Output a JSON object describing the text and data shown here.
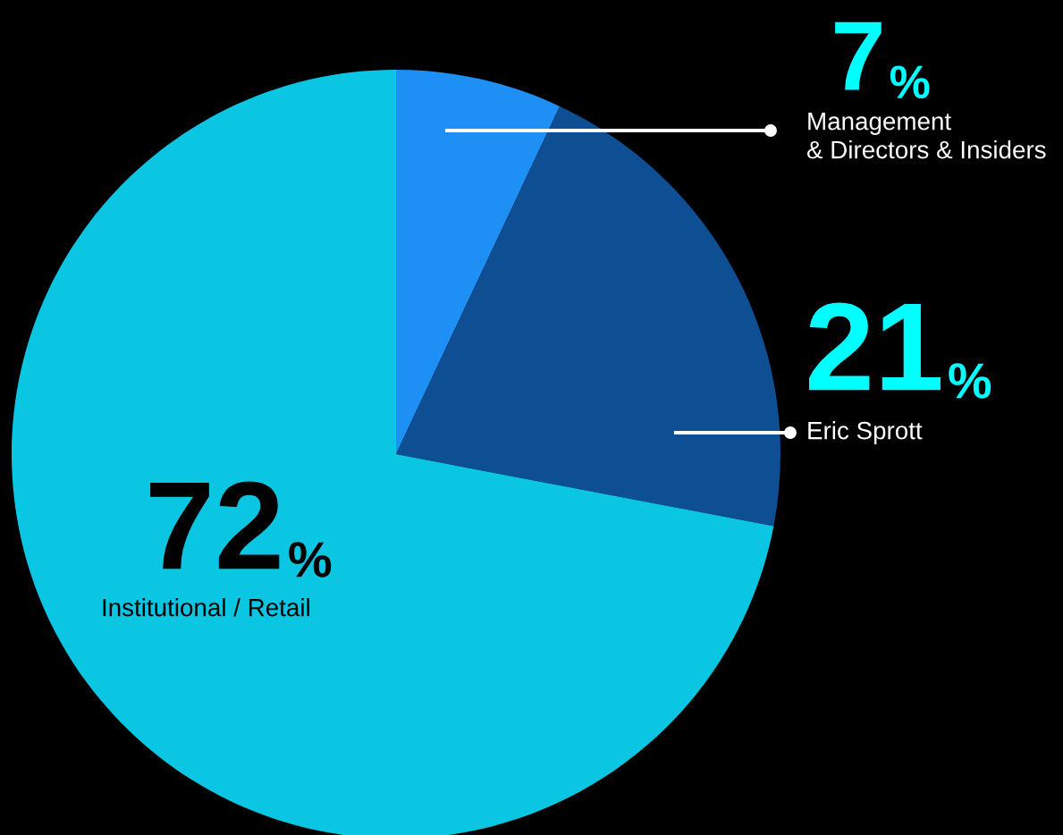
{
  "chart_data": {
    "type": "pie",
    "categories": [
      "Management\n& Directors & Insiders",
      "Eric Sprott",
      "Institutional / Retail"
    ],
    "values": [
      7,
      21,
      72
    ],
    "colors": [
      "#1e8ff5",
      "#0e4f94",
      "#0bc6e2"
    ],
    "value_labels": [
      "7%",
      "21%",
      "72%"
    ],
    "legend": false
  }
}
